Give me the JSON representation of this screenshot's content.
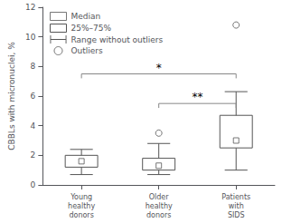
{
  "chart_data": {
    "type": "boxplot",
    "categories": [
      "Young\nhealthy\ndonors",
      "Older\nhealthy\ndonors",
      "Patients\nwith\nSIDS"
    ],
    "series": [
      {
        "name": "Median",
        "type": "scatter",
        "marker": "square",
        "color": "#555555",
        "values": [
          1.6,
          1.3,
          3.0
        ]
      },
      {
        "name": "25%–75%",
        "type": "box",
        "color": "#555555",
        "values": [
          [
            1.2,
            2.0
          ],
          [
            1.0,
            1.8
          ],
          [
            2.5,
            4.7
          ]
        ]
      },
      {
        "name": "Range without outliers",
        "type": "whisker",
        "color": "#555555",
        "values": [
          [
            0.7,
            2.4
          ],
          [
            0.7,
            2.8
          ],
          [
            1.0,
            6.3
          ]
        ]
      },
      {
        "name": "Outliers",
        "type": "scatter",
        "marker": "circle",
        "color": "#555555",
        "values": [
          [],
          [
            3.5
          ],
          [
            10.8
          ]
        ]
      }
    ],
    "annotations": [
      {
        "text": "*",
        "from": "Young\nhealthy\ndonors",
        "to": "Patients\nwith\nSIDS",
        "y": 7.5,
        "drop": 0.3,
        "color": "#888888"
      },
      {
        "text": "**",
        "from": "Older\nhealthy\ndonors",
        "to": "Patients\nwith\nSIDS",
        "y": 5.5,
        "drop": 0.3,
        "color": "#888888"
      }
    ],
    "ylabel": "CBBLs with micronuclei, %",
    "ylim": [
      0,
      12
    ],
    "yticks": [
      0,
      2,
      4,
      6,
      8,
      10,
      12
    ],
    "grid": false,
    "legend": "upper left"
  }
}
